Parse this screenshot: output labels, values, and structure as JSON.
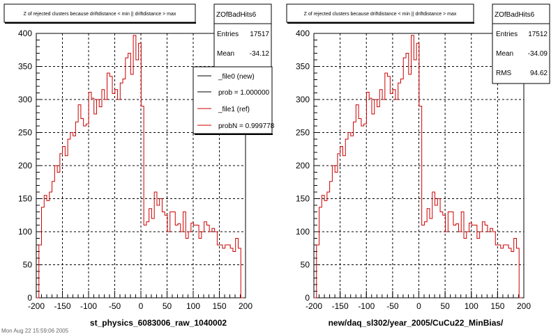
{
  "chart_data": [
    {
      "type": "histogram",
      "title": "Z of rejected clusters because driftdistance < min || driftdistance > max",
      "xlabel": "st_physics_6083006_raw_1040002",
      "xlim": [
        -200,
        200
      ],
      "ylim": [
        0,
        400
      ],
      "x_ticks": [
        "-200",
        "-150",
        "-100",
        "-50",
        "0",
        "50",
        "100",
        "150",
        "200"
      ],
      "y_ticks": [
        "0",
        "50",
        "100",
        "150",
        "200",
        "250",
        "300",
        "350",
        "400"
      ],
      "grid": true,
      "stats": {
        "name": "ZOfBadHits6",
        "entries_label": "Entries",
        "entries": "17517",
        "mean_label": "Mean",
        "mean": "-34.12"
      },
      "legend": [
        {
          "text": "_file0 (new)",
          "color": "#000000"
        },
        {
          "text": "prob = 1.000000",
          "color": "#000000"
        },
        {
          "text": "_file1 (ref)",
          "color": "#cc0000"
        },
        {
          "text": "probN = 0.999778",
          "color": "#cc0000"
        }
      ],
      "series": [
        {
          "color": "#cc0000",
          "bin_edges": [
            -200,
            196
          ],
          "values": [
            0,
            80,
            137,
            155,
            147,
            160,
            176,
            200,
            190,
            218,
            229,
            215,
            240,
            250,
            245,
            266,
            292,
            271,
            260,
            263,
            311,
            302,
            278,
            300,
            289,
            315,
            300,
            340,
            335,
            309,
            315,
            300,
            325,
            331,
            363,
            370,
            338,
            397,
            360,
            385,
            290,
            110,
            115,
            135,
            120,
            160,
            140,
            150,
            130,
            125,
            100,
            130,
            130,
            110,
            112,
            100,
            130,
            90,
            100,
            113,
            110,
            110,
            90,
            100,
            115,
            110,
            100,
            105,
            100,
            80,
            80,
            75,
            80,
            80,
            75,
            70,
            90,
            75,
            0
          ]
        }
      ]
    },
    {
      "type": "histogram",
      "title": "Z of rejected clusters because driftdistance < min || driftdistance > max",
      "xlabel": "new/daq_sl302/year_2005/CuCu22_MinBias/",
      "xlim": [
        -200,
        200
      ],
      "ylim": [
        0,
        400
      ],
      "x_ticks": [
        "-200",
        "-150",
        "-100",
        "-50",
        "0",
        "50",
        "100",
        "150",
        "200"
      ],
      "y_ticks": [
        "0",
        "50",
        "100",
        "150",
        "200",
        "250",
        "300",
        "350",
        "400"
      ],
      "grid": true,
      "stats": {
        "name": "ZOfBadHits6",
        "entries_label": "Entries",
        "entries": "17512",
        "mean_label": "Mean",
        "mean": "-34.09",
        "rms_label": "RMS",
        "rms": "94.62"
      },
      "series": [
        {
          "color": "#cc0000",
          "bin_edges": [
            -200,
            196
          ],
          "values": [
            0,
            80,
            137,
            155,
            147,
            160,
            176,
            200,
            190,
            218,
            229,
            215,
            240,
            250,
            245,
            266,
            292,
            271,
            260,
            263,
            311,
            302,
            278,
            300,
            289,
            315,
            300,
            340,
            335,
            309,
            315,
            300,
            325,
            331,
            363,
            370,
            338,
            397,
            360,
            385,
            290,
            110,
            115,
            135,
            120,
            160,
            140,
            150,
            130,
            125,
            100,
            130,
            130,
            110,
            112,
            100,
            130,
            90,
            100,
            113,
            110,
            110,
            90,
            100,
            115,
            110,
            100,
            105,
            100,
            80,
            80,
            75,
            80,
            80,
            75,
            70,
            90,
            75,
            0
          ]
        }
      ]
    }
  ],
  "footer_text": "Mon Aug 22 15:59:06 2005"
}
